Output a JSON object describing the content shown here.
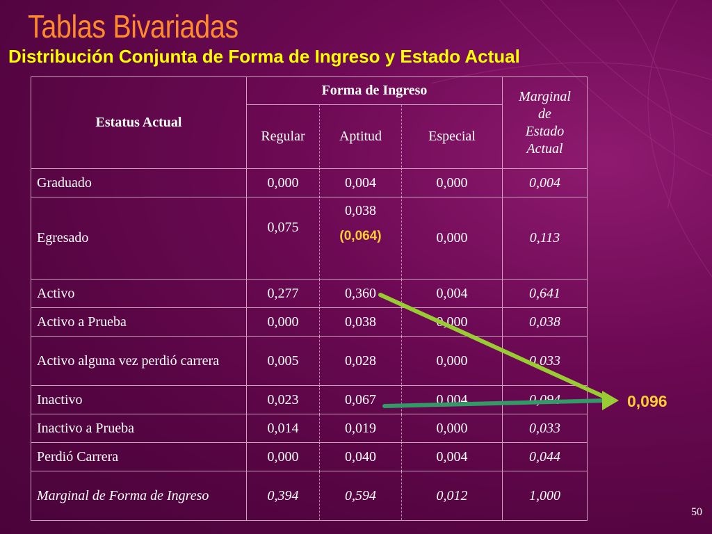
{
  "slide": {
    "title": "Tablas Bivariadas",
    "subtitle": "Distribución Conjunta de Forma de Ingreso y Estado Actual",
    "page_number": "50",
    "result_label": "0,096"
  },
  "table": {
    "row_header_label": "Estatus Actual",
    "group_header": "Forma de Ingreso",
    "columns": [
      "Regular",
      "Aptitud",
      "Especial"
    ],
    "marginal_header": [
      "Marginal",
      "de",
      "Estado",
      "Actual"
    ],
    "rows": [
      {
        "label": "Graduado",
        "values": [
          "0,000",
          "0,004",
          "0,000"
        ],
        "marginal": "0,004"
      },
      {
        "label": "Egresado",
        "values": [
          "0,075",
          "0,038",
          "0,000"
        ],
        "note": "(0,064)",
        "marginal": "0,113"
      },
      {
        "label": "Activo",
        "values": [
          "0,277",
          "0,360",
          "0,004"
        ],
        "marginal": "0,641"
      },
      {
        "label": "Activo a Prueba",
        "values": [
          "0,000",
          "0,038",
          "0,000"
        ],
        "marginal": "0,038"
      },
      {
        "label": "Activo alguna vez perdió carrera",
        "values": [
          "0,005",
          "0,028",
          "0,000"
        ],
        "marginal": "0,033"
      },
      {
        "label": "Inactivo",
        "values": [
          "0,023",
          "0,067",
          "0,004"
        ],
        "marginal": "0,094"
      },
      {
        "label": "Inactivo a Prueba",
        "values": [
          "0,014",
          "0,019",
          "0,000"
        ],
        "marginal": "0,033"
      },
      {
        "label": "Perdió Carrera",
        "values": [
          "0,000",
          "0,040",
          "0,004"
        ],
        "marginal": "0,044"
      }
    ],
    "footer": {
      "label": "Marginal de Forma de Ingreso",
      "values": [
        "0,394",
        "0,594",
        "0,012"
      ],
      "marginal": "1,000"
    }
  },
  "colors": {
    "background": "#6e0a55",
    "title": "#ff8a2e",
    "subtitle": "#ffff00",
    "highlight": "#ffcc33",
    "arrow_top": "#99cc33",
    "arrow_bottom": "#339966"
  }
}
